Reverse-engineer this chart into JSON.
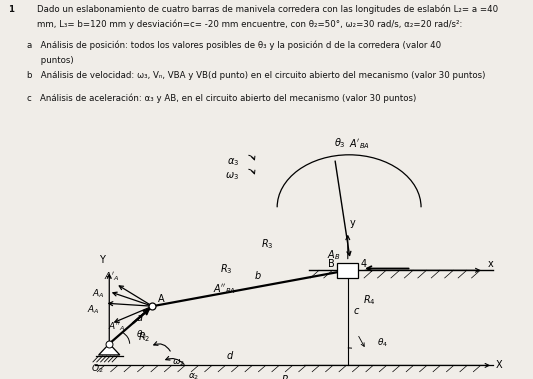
{
  "line1": "Dado un eslabonamiento de cuatro barras de manivela corredera con las longitudes de eslabón L₂= a =40",
  "line2": "mm, L₃= b=120 mm y desviación=c= -20 mm encuentre, con θ₂=50°, ω₂=30 rad/s, α₂=20 rad/s²:",
  "item_a1": "a   Análisis de posición: todos los valores posibles de θ₃ y la posición d de la corredera (valor 40",
  "item_a2": "     puntos)",
  "item_b": "b   Análisis de velocidad: ω₃, Vₙ, VBA y VB(d punto) en el circuito abierto del mecanismo (valor 30 puntos)",
  "item_c": "c   Análisis de aceleración: α₃ y AB, en el circuito abierto del mecanismo (valor 30 puntos)",
  "diagram_bg": "#cdd8e0",
  "text_color": "#111111"
}
